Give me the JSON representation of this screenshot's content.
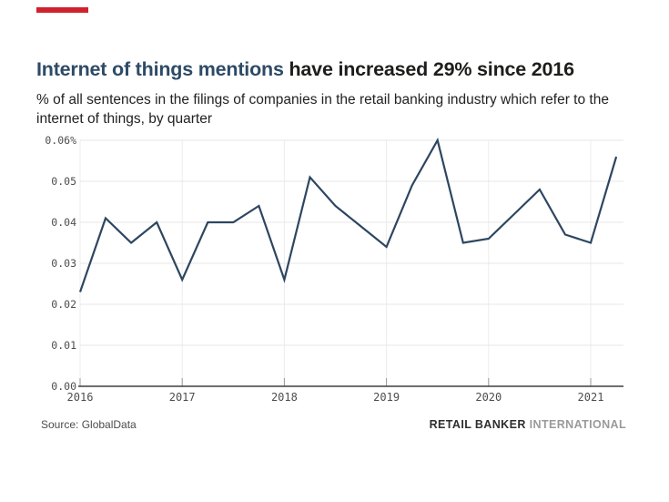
{
  "brand": {
    "accent_color": "#d0222e",
    "title_highlight_color": "#2e4a66",
    "line_color": "#2d4660"
  },
  "header": {
    "title_highlight": "Internet of things mentions",
    "title_rest": " have increased 29% since 2016",
    "subtitle": "% of all sentences in the filings of companies in the retail banking industry which refer to the internet of things, by quarter"
  },
  "chart_data": {
    "type": "line",
    "title": "Internet of things mentions have increased 29% since 2016",
    "xlabel": "",
    "ylabel": "% of sentences",
    "unit": "%",
    "grid": true,
    "legend": "none",
    "ylim": [
      0,
      0.06
    ],
    "x": [
      "2016 Q1",
      "2016 Q2",
      "2016 Q3",
      "2016 Q4",
      "2017 Q1",
      "2017 Q2",
      "2017 Q3",
      "2017 Q4",
      "2018 Q1",
      "2018 Q2",
      "2018 Q3",
      "2018 Q4",
      "2019 Q1",
      "2019 Q2",
      "2019 Q3",
      "2019 Q4",
      "2020 Q1",
      "2020 Q2",
      "2020 Q3",
      "2020 Q4",
      "2021 Q1",
      "2021 Q2"
    ],
    "values": [
      0.023,
      0.041,
      0.035,
      0.04,
      0.026,
      0.04,
      0.04,
      0.044,
      0.026,
      0.051,
      0.044,
      0.039,
      0.034,
      0.049,
      0.06,
      0.035,
      0.036,
      0.042,
      0.048,
      0.037,
      0.035,
      0.056
    ],
    "ytick_labels": [
      "0.06%",
      "0.05",
      "0.04",
      "0.03",
      "0.02",
      "0.01",
      "0.00"
    ],
    "ytick_values": [
      0.06,
      0.05,
      0.04,
      0.03,
      0.02,
      0.01,
      0.0
    ],
    "xtick_labels": [
      "2016",
      "2017",
      "2018",
      "2019",
      "2020",
      "2021"
    ]
  },
  "footer": {
    "source": "Source: GlobalData",
    "brand_bold": "RETAIL BANKER",
    "brand_light": "INTERNATIONAL"
  }
}
